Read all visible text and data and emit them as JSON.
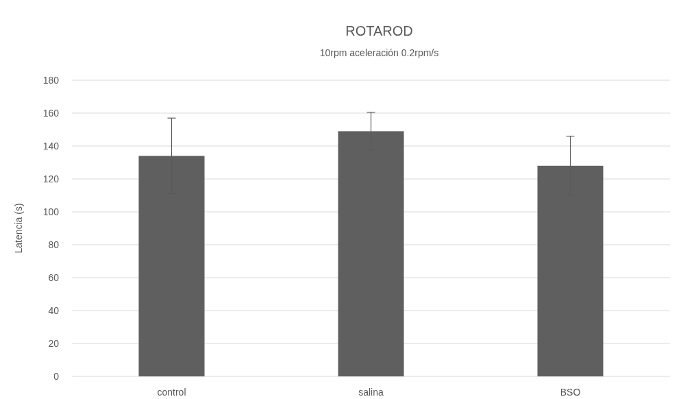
{
  "chart_data": {
    "type": "bar",
    "title": "ROTAROD",
    "subtitle": "10rpm aceleración 0.2rpm/s",
    "ylabel": "Latencia (s)",
    "categories": [
      "control",
      "salina",
      "BSO"
    ],
    "values": [
      134,
      149,
      128
    ],
    "errors": [
      23,
      11.5,
      18
    ],
    "color": "#5f5f5f",
    "ylim": [
      0,
      180
    ],
    "yticks": [
      0,
      20,
      40,
      60,
      80,
      100,
      120,
      140,
      160,
      180
    ],
    "grid": "y"
  }
}
